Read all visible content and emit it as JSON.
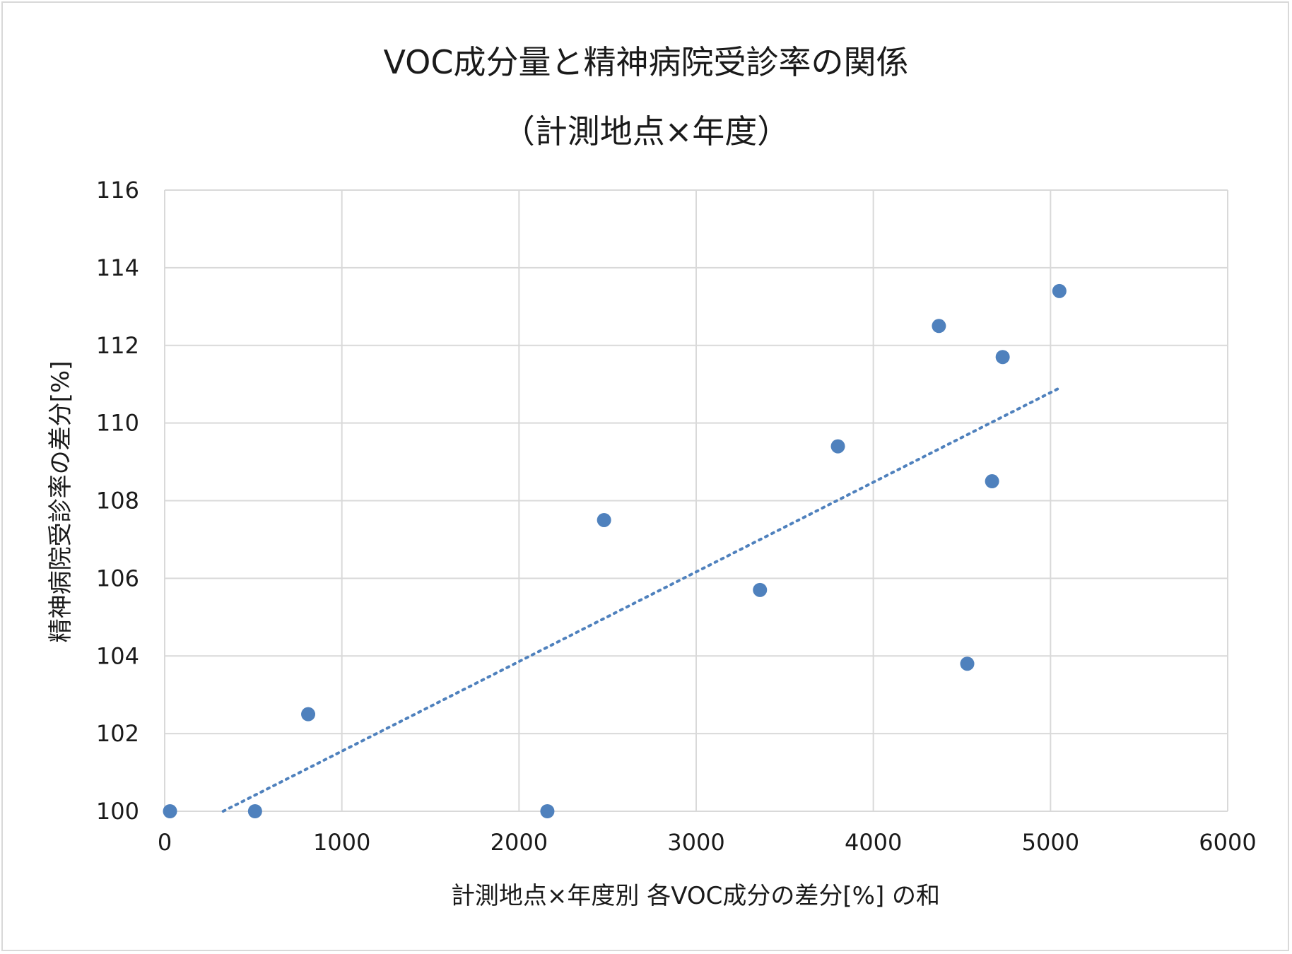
{
  "chart_data": {
    "type": "scatter",
    "title": "VOC成分量と精神病院受診率の関係",
    "subtitle": "（計測地点×年度）",
    "xlabel": "計測地点×年度別 各VOC成分の差分[%] の和",
    "ylabel": "精神病院受診率の差分[%]",
    "xlim": [
      0,
      6000
    ],
    "ylim": [
      100,
      116
    ],
    "xticks": [
      "0",
      "1000",
      "2000",
      "3000",
      "4000",
      "5000",
      "6000"
    ],
    "yticks": [
      "100",
      "102",
      "104",
      "106",
      "108",
      "110",
      "112",
      "114",
      "116"
    ],
    "grid": true,
    "marker_color": "#4f81bd",
    "trendline": {
      "style": "dotted",
      "color": "#4f81bd",
      "x": [
        330,
        5050
      ],
      "y": [
        100.0,
        110.9
      ]
    },
    "points": [
      {
        "x": 30,
        "y": 100.0
      },
      {
        "x": 510,
        "y": 100.0
      },
      {
        "x": 810,
        "y": 102.5
      },
      {
        "x": 2160,
        "y": 100.0
      },
      {
        "x": 2480,
        "y": 107.5
      },
      {
        "x": 3360,
        "y": 105.7
      },
      {
        "x": 3800,
        "y": 109.4
      },
      {
        "x": 4370,
        "y": 112.5
      },
      {
        "x": 4530,
        "y": 103.8
      },
      {
        "x": 4670,
        "y": 108.5
      },
      {
        "x": 4730,
        "y": 111.7
      },
      {
        "x": 5050,
        "y": 113.4
      }
    ]
  }
}
